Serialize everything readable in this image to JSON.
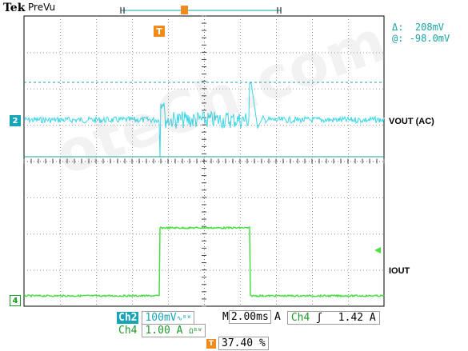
{
  "header": {
    "brand": "Tek",
    "mode": "PreVu"
  },
  "cursor_readout": {
    "delta_label": "Δ:",
    "delta_value": "208mV",
    "at_label": "@:",
    "at_value": "-98.0mV"
  },
  "channels": {
    "ch2": {
      "marker": "2",
      "label": "VOUT (AC)",
      "tag": "Ch2",
      "scale": "100mV",
      "coupling_icon": "∿ᴮᵂ",
      "color": "#3ad6e8"
    },
    "ch4": {
      "marker": "4",
      "label": "IOUT",
      "tag": "Ch4",
      "scale": "1.00 A",
      "coupling_icon": "Ωᴮᵂ",
      "color": "#49df43"
    }
  },
  "horizontal": {
    "label": "M",
    "timebase": "2.00ms"
  },
  "trigger": {
    "mode": "A",
    "source": "Ch4",
    "slope_icon": "ʃ",
    "level": "1.42 A",
    "position_marker": "T",
    "position": "37.40 %",
    "color": "#f08a1c"
  },
  "watermark": "oteCh.com"
}
